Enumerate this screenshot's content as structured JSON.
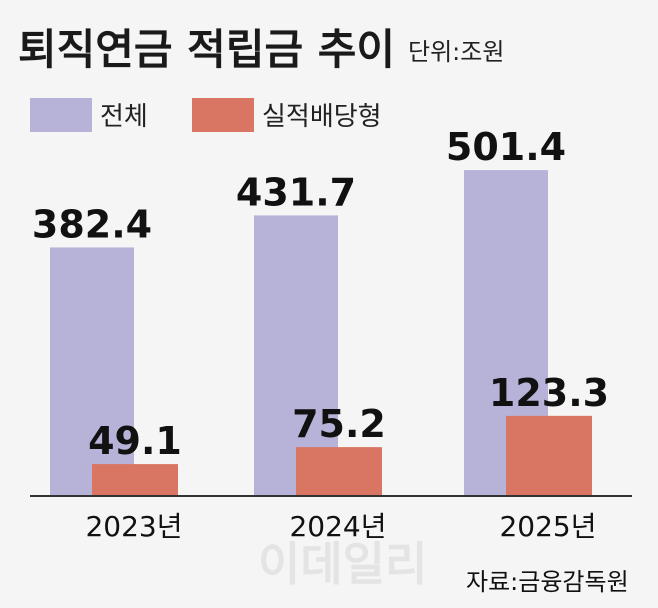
{
  "header": {
    "title": "퇴직연금 적립금 추이",
    "unit": "단위:조원"
  },
  "footer": {
    "source": "자료:금융감독원",
    "watermark": "이데일리"
  },
  "colors": {
    "total": "#b7b3d8",
    "dividend": "#d97563",
    "axis": "#333333"
  },
  "chart_data": {
    "type": "bar",
    "title": "퇴직연금 적립금 추이",
    "unit": "단위:조원",
    "categories": [
      "2023년",
      "2024년",
      "2025년"
    ],
    "series": [
      {
        "name": "전체",
        "values": [
          382.4,
          431.7,
          501.4
        ]
      },
      {
        "name": "실적배당형",
        "values": [
          49.1,
          75.2,
          123.3
        ]
      }
    ],
    "ylim": [
      0,
      600
    ],
    "grid": false,
    "legend": "top-left"
  }
}
